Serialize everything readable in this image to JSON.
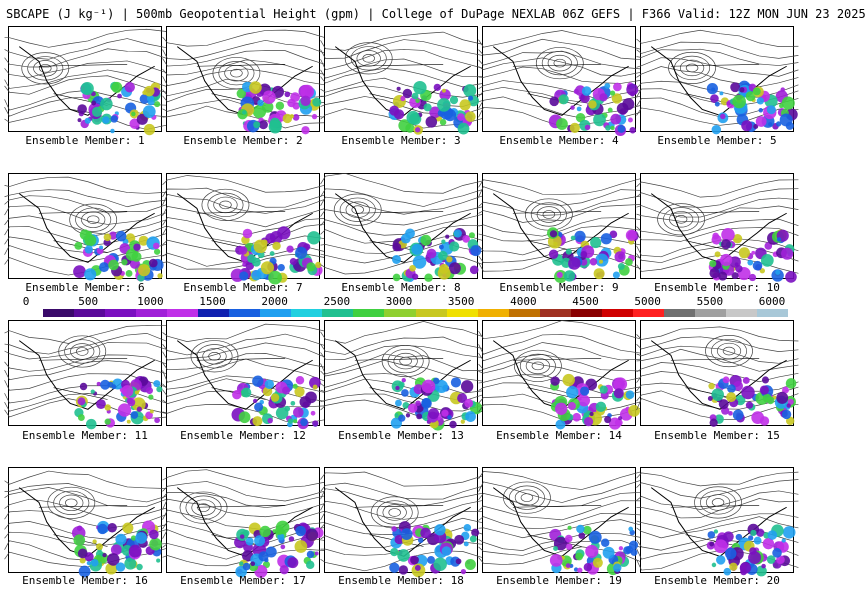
{
  "title": "SBCAPE (J kg⁻¹) | 500mb Geopotential Height (gpm) | College of DuPage NEXLAB 06Z GEFS | F366 Valid: 12Z MON JUN 23 2025",
  "colorbar": {
    "ticks": [
      "0",
      "500",
      "1000",
      "1500",
      "2000",
      "2500",
      "3000",
      "3500",
      "4000",
      "4500",
      "5000",
      "5500",
      "6000"
    ],
    "colors": [
      "#ffffff",
      "#3a0a6a",
      "#5a0a9a",
      "#7a10c0",
      "#a020d8",
      "#c030e8",
      "#1020b0",
      "#1860e0",
      "#20a0f0",
      "#20d0e0",
      "#20c090",
      "#40d040",
      "#90d030",
      "#c8c820",
      "#f0e000",
      "#f0b000",
      "#c07000",
      "#a03020",
      "#8a0000",
      "#d00000",
      "#ff2020",
      "#707070",
      "#a0a0a0",
      "#c8c8c8",
      "#a8c8d8"
    ]
  },
  "members": [
    {
      "label": "Ensemble Member: 1"
    },
    {
      "label": "Ensemble Member: 2"
    },
    {
      "label": "Ensemble Member: 3"
    },
    {
      "label": "Ensemble Member: 4"
    },
    {
      "label": "Ensemble Member: 5"
    },
    {
      "label": "Ensemble Member: 6"
    },
    {
      "label": "Ensemble Member: 7"
    },
    {
      "label": "Ensemble Member: 8"
    },
    {
      "label": "Ensemble Member: 9"
    },
    {
      "label": "Ensemble Member: 10"
    },
    {
      "label": "Ensemble Member: 11"
    },
    {
      "label": "Ensemble Member: 12"
    },
    {
      "label": "Ensemble Member: 13"
    },
    {
      "label": "Ensemble Member: 14"
    },
    {
      "label": "Ensemble Member: 15"
    },
    {
      "label": "Ensemble Member: 16"
    },
    {
      "label": "Ensemble Member: 17"
    },
    {
      "label": "Ensemble Member: 18"
    },
    {
      "label": "Ensemble Member: 19"
    },
    {
      "label": "Ensemble Member: 20"
    }
  ]
}
